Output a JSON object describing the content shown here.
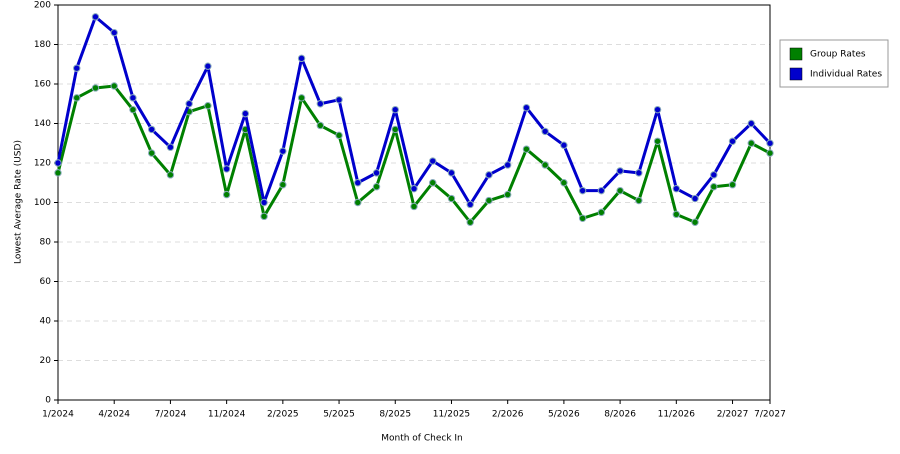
{
  "chart_data": {
    "type": "line",
    "x_label": "Month of Check In",
    "y_label": "Lowest Average Rate (USD)",
    "categories": [
      "1/2024",
      null,
      null,
      "4/2024",
      null,
      null,
      "7/2024",
      null,
      null,
      "11/2024",
      null,
      null,
      "2/2025",
      null,
      null,
      "5/2025",
      null,
      null,
      "8/2025",
      null,
      null,
      "11/2025",
      null,
      null,
      "2/2026",
      null,
      null,
      "5/2026",
      null,
      null,
      "8/2026",
      null,
      null,
      "11/2026",
      null,
      null,
      "2/2027",
      null,
      "7/2027"
    ],
    "series": [
      {
        "name": "Group Rates",
        "color": "#008000",
        "values": [
          115,
          153,
          158,
          159,
          147,
          125,
          114,
          146,
          149,
          104,
          137,
          93,
          109,
          153,
          139,
          134,
          100,
          108,
          137,
          98,
          110,
          102,
          90,
          101,
          104,
          127,
          119,
          110,
          92,
          95,
          106,
          101,
          131,
          94,
          90,
          108,
          109,
          130,
          125
        ]
      },
      {
        "name": "Individual Rates",
        "color": "#0000cc",
        "values": [
          120,
          168,
          194,
          186,
          153,
          137,
          128,
          150,
          169,
          117,
          145,
          100,
          126,
          173,
          150,
          152,
          110,
          115,
          147,
          107,
          121,
          115,
          99,
          114,
          119,
          148,
          136,
          129,
          106,
          106,
          116,
          115,
          147,
          107,
          102,
          114,
          131,
          140,
          130
        ]
      }
    ],
    "ylim": [
      0,
      200
    ],
    "yticks": [
      0,
      20,
      40,
      60,
      80,
      100,
      120,
      140,
      160,
      180,
      200
    ],
    "grid": true,
    "legend": "right"
  }
}
